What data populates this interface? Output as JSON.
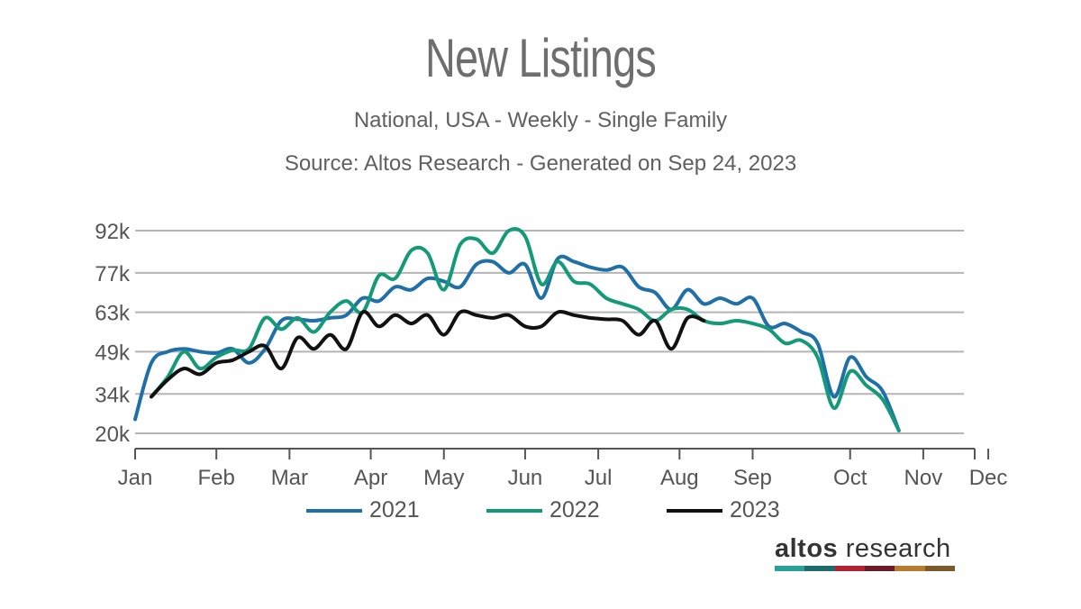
{
  "header": {
    "title": "New Listings",
    "subtitle": "National, USA - Weekly - Single Family",
    "source": "Source: Altos Research - Generated on Sep 24, 2023"
  },
  "brand": {
    "word1": "altos",
    "word2": "research",
    "bar_colors": [
      "#2aa198",
      "#1e6b6b",
      "#b22234",
      "#6b1a2a",
      "#b87b2e",
      "#7a5a2a"
    ]
  },
  "colors": {
    "2021": "#1f6fa8",
    "2022": "#149a78",
    "2023": "#111111",
    "grid": "#b5b5b5",
    "axis": "#555555"
  },
  "chart_data": {
    "type": "line",
    "x_unit": "week of year",
    "xlim": [
      1,
      52
    ],
    "ylim": [
      20000,
      92000
    ],
    "y_ticks": [
      20000,
      34000,
      49000,
      63000,
      77000,
      92000
    ],
    "y_tick_labels": [
      "20k",
      "34k",
      "49k",
      "63k",
      "77k",
      "92k"
    ],
    "x_tick_labels": [
      "Jan",
      "Feb",
      "Mar",
      "Apr",
      "May",
      "Jun",
      "Jul",
      "Aug",
      "Sep",
      "Oct",
      "Nov",
      "Dec"
    ],
    "x_tick_weeks": [
      1,
      6,
      10.5,
      15.5,
      20,
      25,
      29.5,
      34.5,
      39,
      45,
      49.5,
      53.5
    ],
    "grid": true,
    "legend_position": "bottom",
    "series": [
      {
        "name": "2021",
        "x": [
          1,
          2,
          3,
          4,
          5,
          6,
          7,
          8,
          9,
          10,
          11,
          12,
          13,
          14,
          15,
          16,
          17,
          18,
          19,
          20,
          21,
          22,
          23,
          24,
          25,
          26,
          27,
          28,
          29,
          30,
          31,
          32,
          33,
          34,
          35,
          36,
          37,
          38,
          39,
          40,
          41,
          42,
          43,
          44,
          45,
          46,
          47,
          48,
          49,
          50,
          51,
          52
        ],
        "values": [
          25000,
          45000,
          49000,
          50000,
          49000,
          48500,
          50000,
          45000,
          50000,
          60000,
          60500,
          60000,
          61000,
          62000,
          68000,
          67000,
          72000,
          71000,
          75000,
          74000,
          72000,
          80000,
          81000,
          77000,
          80000,
          68000,
          82000,
          81000,
          79000,
          78000,
          79000,
          72000,
          70000,
          64000,
          71000,
          66000,
          68000,
          66000,
          68000,
          58000,
          59000,
          56000,
          52000,
          33000,
          47000,
          40000,
          35000,
          21000,
          null,
          null,
          null,
          null
        ]
      },
      {
        "name": "2022",
        "x": [
          1,
          2,
          3,
          4,
          5,
          6,
          7,
          8,
          9,
          10,
          11,
          12,
          13,
          14,
          15,
          16,
          17,
          18,
          19,
          20,
          21,
          22,
          23,
          24,
          25,
          26,
          27,
          28,
          29,
          30,
          31,
          32,
          33,
          34,
          35,
          36,
          37,
          38,
          39,
          40,
          41,
          42,
          43,
          44,
          45,
          46,
          47,
          48,
          49,
          50,
          51,
          52
        ],
        "values": [
          null,
          33000,
          40000,
          49000,
          43000,
          47000,
          49500,
          50000,
          61000,
          57000,
          61000,
          56000,
          63000,
          67000,
          63000,
          76000,
          75000,
          85000,
          84000,
          71000,
          87000,
          89000,
          84000,
          92000,
          90000,
          73000,
          81000,
          74000,
          73000,
          68000,
          66000,
          64000,
          60000,
          64000,
          64000,
          60000,
          59000,
          60000,
          59000,
          57000,
          52000,
          53000,
          47000,
          29000,
          42000,
          37000,
          32000,
          21000,
          null,
          null,
          null,
          null
        ]
      },
      {
        "name": "2023",
        "x": [
          1,
          2,
          3,
          4,
          5,
          6,
          7,
          8,
          9,
          10,
          11,
          12,
          13,
          14,
          15,
          16,
          17,
          18,
          19,
          20,
          21,
          22,
          23,
          24,
          25,
          26,
          27,
          28,
          29,
          30,
          31,
          32,
          33,
          34,
          35,
          36,
          37,
          38,
          39,
          40,
          41,
          42,
          43,
          44,
          45,
          46,
          47,
          48,
          49,
          50,
          51,
          52
        ],
        "values": [
          null,
          33000,
          39000,
          43000,
          41000,
          45000,
          46000,
          49000,
          51000,
          43000,
          54000,
          50000,
          55000,
          50000,
          63000,
          58000,
          62000,
          59000,
          62000,
          55000,
          63000,
          62000,
          61000,
          62000,
          58000,
          58000,
          63000,
          62000,
          61000,
          60500,
          60000,
          55000,
          60000,
          50000,
          61000,
          60000,
          null,
          null,
          null,
          null,
          null,
          null,
          null,
          null,
          null,
          null,
          null,
          null,
          null,
          null,
          null,
          null
        ]
      }
    ]
  }
}
